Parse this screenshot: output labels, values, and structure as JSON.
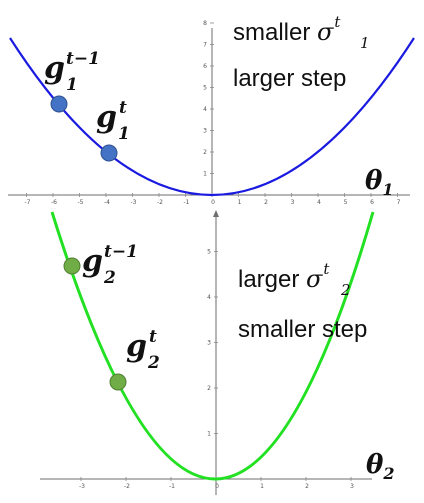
{
  "top_panel": {
    "curve_color": "#1a1ae0",
    "point_color": "#4472c4",
    "point_prev_label": {
      "base": "g",
      "sub": "1",
      "sup": "t−1"
    },
    "point_curr_label": {
      "base": "g",
      "sub": "1",
      "sup": "t"
    },
    "axis_label": {
      "base": "θ",
      "sub": "1"
    },
    "note_line1_text": "smaller ",
    "note_line1_sigma": {
      "base": "σ",
      "sub": "1",
      "sup": "t"
    },
    "note_line2": "larger step",
    "x_ticks": [
      "-7",
      "-6",
      "-5",
      "-4",
      "-3",
      "-2",
      "-1",
      "0",
      "1",
      "2",
      "3",
      "4",
      "5",
      "6",
      "7"
    ],
    "y_ticks": [
      "1",
      "2",
      "3",
      "4",
      "5",
      "6",
      "7",
      "8"
    ]
  },
  "bottom_panel": {
    "curve_color": "#22e022",
    "point_color": "#70ad47",
    "point_prev_label": {
      "base": "g",
      "sub": "2",
      "sup": "t−1"
    },
    "point_curr_label": {
      "base": "g",
      "sub": "2",
      "sup": "t"
    },
    "axis_label": {
      "base": "θ",
      "sub": "2"
    },
    "note_line1_text": "larger ",
    "note_line1_sigma": {
      "base": "σ",
      "sub": "2",
      "sup": "t"
    },
    "note_line2": "smaller step",
    "x_ticks": [
      "-3",
      "-2",
      "-1",
      "0",
      "1",
      "2",
      "3"
    ],
    "y_ticks": [
      "1",
      "2",
      "3",
      "4",
      "5"
    ]
  }
}
